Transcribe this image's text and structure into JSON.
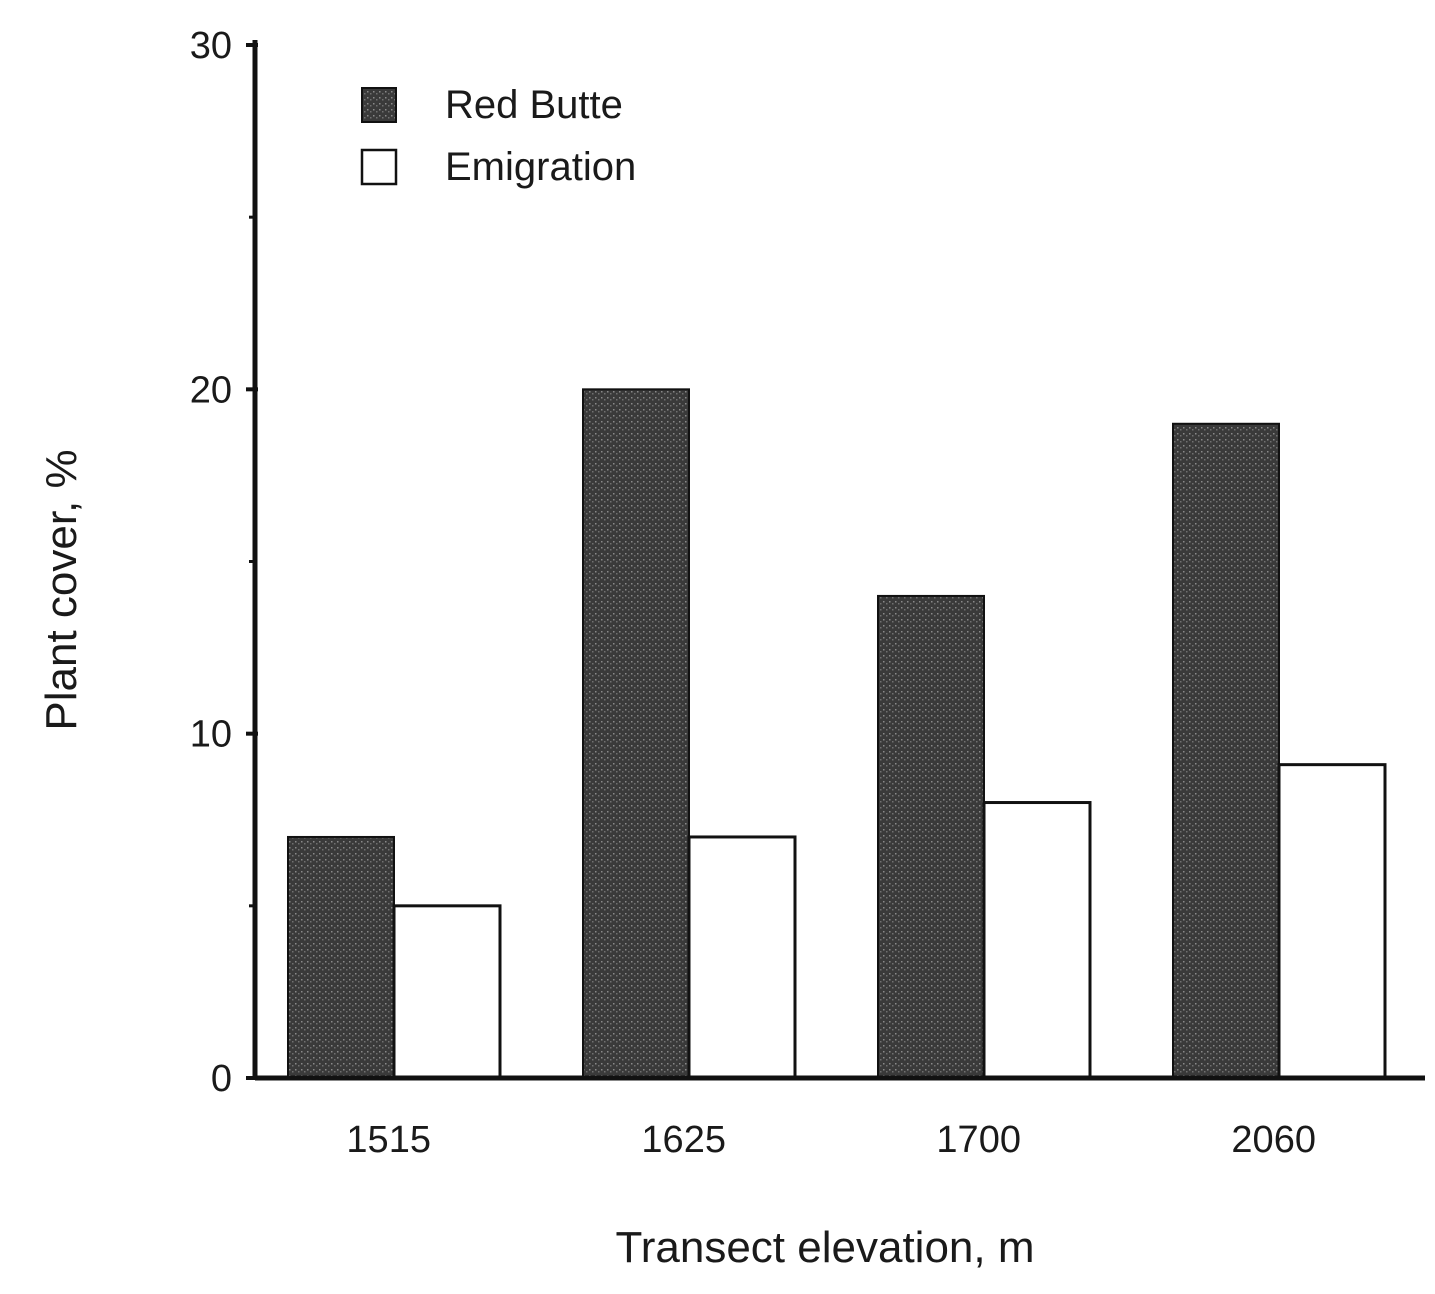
{
  "chart_data": {
    "type": "bar",
    "categories": [
      "1515",
      "1625",
      "1700",
      "2060"
    ],
    "series": [
      {
        "name": "Red Butte",
        "values": [
          7,
          20,
          14,
          19
        ],
        "color": "#3a3a3a"
      },
      {
        "name": "Emigration",
        "values": [
          5,
          7,
          8,
          9.1
        ],
        "color": "#ffffff"
      }
    ],
    "yticks": [
      "0",
      "10",
      "20",
      "30"
    ],
    "xlabel": "Transect elevation, m",
    "ylabel": "Plant cover, %",
    "ylim": [
      0,
      30
    ],
    "grid": false,
    "legend": "top-left"
  }
}
